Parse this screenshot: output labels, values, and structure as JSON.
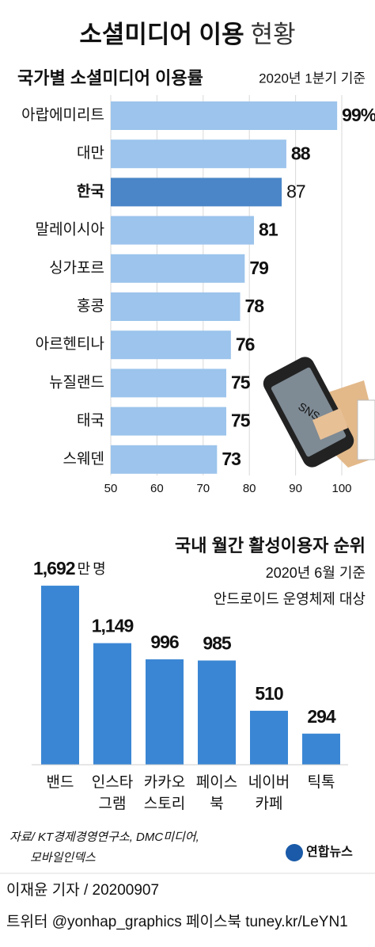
{
  "header": {
    "title": "소셜미디어 이용",
    "title_light": "현황"
  },
  "chart_data": [
    {
      "type": "hbar",
      "title": "국가별 소셜미디어 이용률",
      "subtitle": "2020년 1분기 기준",
      "categories": [
        "아랍에미리트",
        "대만",
        "한국",
        "말레이시아",
        "싱가포르",
        "홍콩",
        "아르헨티나",
        "뉴질랜드",
        "태국",
        "스웨덴"
      ],
      "values": [
        99,
        88,
        87,
        81,
        79,
        78,
        76,
        75,
        75,
        73
      ],
      "value_labels": [
        "99%",
        "88",
        "87",
        "81",
        "79",
        "78",
        "76",
        "75",
        "75",
        "73"
      ],
      "color": "#9cc4ec",
      "highlight": "한국",
      "highlight_color": "#4a86c8",
      "xlim": [
        50,
        100
      ],
      "xticks": [
        50,
        60,
        70,
        80,
        90,
        100
      ],
      "grid": true
    },
    {
      "type": "bar",
      "title": "국내 월간 활성이용자 순위",
      "subtitle": [
        "2020년 6월 기준",
        "안드로이드 운영체제 대상"
      ],
      "categories": [
        [
          "밴드"
        ],
        [
          "인스타",
          "그램"
        ],
        [
          "카카오",
          "스토리"
        ],
        [
          "페이스",
          "북"
        ],
        [
          "네이버",
          "카페"
        ],
        [
          "틱톡"
        ]
      ],
      "values": [
        1692,
        1149,
        996,
        985,
        510,
        294
      ],
      "value_labels": [
        "1,692",
        "1,149",
        "996",
        "985",
        "510",
        "294"
      ],
      "unit_label": "만 명",
      "color": "#3a86d4",
      "ylim": [
        0,
        1700
      ]
    }
  ],
  "footer": {
    "source": [
      "자료/ KT경제경영연구소, DMC미디어,",
      "모바일인덱스"
    ],
    "logo": "연합뉴스",
    "byline": "이재윤 기자 / 20200907",
    "social": "트위터 @yonhap_graphics  페이스북 tuney.kr/LeYN1"
  }
}
